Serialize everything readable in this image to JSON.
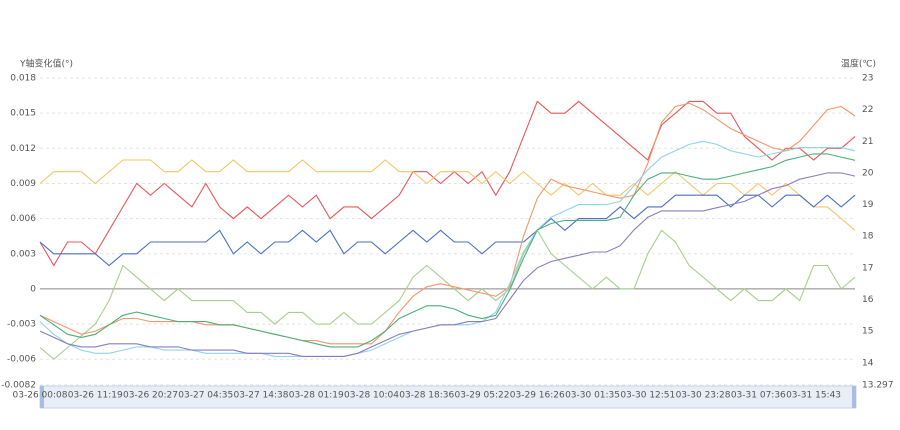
{
  "chart_data": {
    "type": "line",
    "y_label": "Y轴变化值(°)",
    "y2_label": "温度(℃)",
    "categories": [
      "03-26 00:08",
      null,
      null,
      null,
      "03-26 11:19",
      null,
      null,
      null,
      "03-26 20:27",
      null,
      null,
      null,
      "03-27 04:35",
      null,
      null,
      null,
      "03-27 14:38",
      null,
      null,
      null,
      "03-28 01:19",
      null,
      null,
      null,
      "03-28 10:04",
      null,
      null,
      null,
      "03-28 18:36",
      null,
      null,
      null,
      "03-29 05:22",
      null,
      null,
      null,
      "03-29 16:26",
      null,
      null,
      null,
      "03-30 01:35",
      null,
      null,
      null,
      "03-30 12:51",
      null,
      null,
      null,
      "03-30 23:28",
      null,
      null,
      null,
      "03-31 07:36",
      null,
      null,
      null,
      "03-31 15:43",
      null,
      null,
      null
    ],
    "ylim": [
      -0.0082,
      0.018
    ],
    "yticks": [
      -0.0082,
      -0.006,
      -0.003,
      0,
      0.003,
      0.006,
      0.009,
      0.012,
      0.015,
      0.018
    ],
    "y2lim": [
      13.297,
      23
    ],
    "y2ticks": [
      13.297,
      14,
      15,
      16,
      17,
      18,
      19,
      20,
      21,
      22,
      23
    ],
    "grid": true,
    "series": [
      {
        "color": "#e8585a",
        "values": [
          0.004,
          0.002,
          0.004,
          0.004,
          0.003,
          0.005,
          0.007,
          0.009,
          0.008,
          0.009,
          0.008,
          0.007,
          0.009,
          0.007,
          0.006,
          0.007,
          0.006,
          0.007,
          0.008,
          0.007,
          0.008,
          0.006,
          0.007,
          0.007,
          0.006,
          0.007,
          0.008,
          0.01,
          0.01,
          0.009,
          0.01,
          0.009,
          0.01,
          0.008,
          0.01,
          0.013,
          0.016,
          0.015,
          0.015,
          0.016,
          0.015,
          0.014,
          0.013,
          0.012,
          0.011,
          0.014,
          0.015,
          0.016,
          0.016,
          0.015,
          0.015,
          0.013,
          0.012,
          0.011,
          0.012,
          0.012,
          0.011,
          0.012,
          0.012,
          0.013
        ]
      },
      {
        "color": "#f5c66b",
        "values": [
          0.009,
          0.01,
          0.01,
          0.01,
          0.009,
          0.01,
          0.011,
          0.011,
          0.011,
          0.01,
          0.01,
          0.011,
          0.01,
          0.01,
          0.011,
          0.01,
          0.01,
          0.01,
          0.01,
          0.011,
          0.01,
          0.01,
          0.01,
          0.01,
          0.01,
          0.011,
          0.01,
          0.01,
          0.009,
          0.01,
          0.01,
          0.01,
          0.009,
          0.01,
          0.009,
          0.01,
          0.009,
          0.008,
          0.009,
          0.008,
          0.009,
          0.008,
          0.008,
          0.009,
          0.008,
          0.009,
          0.01,
          0.009,
          0.008,
          0.009,
          0.009,
          0.008,
          0.009,
          0.008,
          0.009,
          0.008,
          0.007,
          0.007,
          0.006,
          0.005
        ]
      },
      {
        "color": "#4a6fc8",
        "values": [
          0.004,
          0.003,
          0.003,
          0.003,
          0.003,
          0.002,
          0.003,
          0.003,
          0.004,
          0.004,
          0.004,
          0.004,
          0.004,
          0.005,
          0.003,
          0.004,
          0.003,
          0.004,
          0.004,
          0.005,
          0.004,
          0.005,
          0.003,
          0.004,
          0.004,
          0.003,
          0.004,
          0.005,
          0.004,
          0.005,
          0.004,
          0.004,
          0.003,
          0.004,
          0.004,
          0.004,
          0.005,
          0.006,
          0.005,
          0.006,
          0.006,
          0.006,
          0.007,
          0.006,
          0.007,
          0.007,
          0.008,
          0.008,
          0.008,
          0.008,
          0.007,
          0.008,
          0.008,
          0.007,
          0.008,
          0.008,
          0.007,
          0.008,
          0.007,
          0.008
        ]
      },
      {
        "color": "#a8d08d",
        "values": [
          -0.005,
          -0.006,
          -0.005,
          -0.004,
          -0.003,
          -0.001,
          0.002,
          0.001,
          0,
          -0.001,
          0,
          -0.001,
          -0.001,
          -0.001,
          -0.001,
          -0.002,
          -0.002,
          -0.003,
          -0.002,
          -0.002,
          -0.003,
          -0.003,
          -0.002,
          -0.003,
          -0.003,
          -0.002,
          -0.001,
          0.001,
          0.002,
          0.001,
          0,
          -0.001,
          0,
          -0.001,
          0,
          0.003,
          0.005,
          0.003,
          0.002,
          0.001,
          0,
          0.001,
          0,
          0,
          0.003,
          0.005,
          0.004,
          0.002,
          0.001,
          0,
          -0.001,
          0,
          -0.001,
          -0.001,
          0,
          -0.001,
          0.002,
          0.002,
          0,
          0.001
        ]
      },
      {
        "color": "#f4956a",
        "axis": "y2",
        "values": [
          15.5,
          15.3,
          15.1,
          14.9,
          15.0,
          15.2,
          15.4,
          15.4,
          15.3,
          15.3,
          15.3,
          15.3,
          15.2,
          15.2,
          15.2,
          15.1,
          15.0,
          14.9,
          14.8,
          14.7,
          14.7,
          14.6,
          14.6,
          14.6,
          14.6,
          15.0,
          15.6,
          16.1,
          16.4,
          16.5,
          16.4,
          16.3,
          16.2,
          16.1,
          16.4,
          18.0,
          19.2,
          19.8,
          19.6,
          19.5,
          19.4,
          19.3,
          19.2,
          19.3,
          20.3,
          21.6,
          22.1,
          22.2,
          22.0,
          21.7,
          21.4,
          21.2,
          21.0,
          20.8,
          20.7,
          21.0,
          21.5,
          22.0,
          22.1,
          21.8
        ]
      },
      {
        "color": "#8fd4e8",
        "axis": "y2",
        "values": [
          15.3,
          14.9,
          14.6,
          14.4,
          14.3,
          14.3,
          14.4,
          14.5,
          14.5,
          14.4,
          14.4,
          14.4,
          14.3,
          14.3,
          14.3,
          14.3,
          14.3,
          14.2,
          14.2,
          14.2,
          14.2,
          14.2,
          14.2,
          14.3,
          14.4,
          14.6,
          14.8,
          15.0,
          15.1,
          15.2,
          15.2,
          15.2,
          15.3,
          15.6,
          16.5,
          17.5,
          18.2,
          18.6,
          18.8,
          19.0,
          19.0,
          19.0,
          19.1,
          19.6,
          20.1,
          20.5,
          20.7,
          20.9,
          21.0,
          20.9,
          20.7,
          20.6,
          20.5,
          20.6,
          20.7,
          20.8,
          20.8,
          20.8,
          20.8,
          20.7
        ]
      },
      {
        "color": "#4caf7a",
        "axis": "y2",
        "values": [
          15.5,
          15.2,
          14.9,
          14.8,
          14.9,
          15.2,
          15.5,
          15.6,
          15.5,
          15.4,
          15.3,
          15.3,
          15.3,
          15.2,
          15.2,
          15.1,
          15.0,
          14.9,
          14.8,
          14.7,
          14.6,
          14.5,
          14.5,
          14.5,
          14.7,
          15.0,
          15.4,
          15.6,
          15.8,
          15.8,
          15.7,
          15.5,
          15.4,
          15.5,
          16.3,
          17.3,
          18.2,
          18.4,
          18.5,
          18.5,
          18.5,
          18.5,
          18.6,
          19.3,
          19.8,
          20.0,
          20.0,
          19.9,
          19.8,
          19.8,
          19.9,
          20.0,
          20.1,
          20.2,
          20.4,
          20.5,
          20.6,
          20.6,
          20.5,
          20.4
        ]
      },
      {
        "color": "#8a7cc0",
        "axis": "y2",
        "values": [
          15.0,
          14.8,
          14.6,
          14.5,
          14.5,
          14.6,
          14.6,
          14.6,
          14.5,
          14.5,
          14.5,
          14.4,
          14.4,
          14.4,
          14.4,
          14.3,
          14.3,
          14.3,
          14.3,
          14.2,
          14.2,
          14.2,
          14.2,
          14.3,
          14.5,
          14.7,
          14.9,
          15.0,
          15.1,
          15.2,
          15.2,
          15.3,
          15.3,
          15.4,
          16.0,
          16.6,
          17.0,
          17.2,
          17.3,
          17.4,
          17.5,
          17.5,
          17.7,
          18.2,
          18.6,
          18.8,
          18.8,
          18.8,
          18.8,
          18.9,
          19.0,
          19.1,
          19.3,
          19.5,
          19.6,
          19.8,
          19.9,
          20.0,
          20.0,
          19.9
        ]
      }
    ]
  }
}
